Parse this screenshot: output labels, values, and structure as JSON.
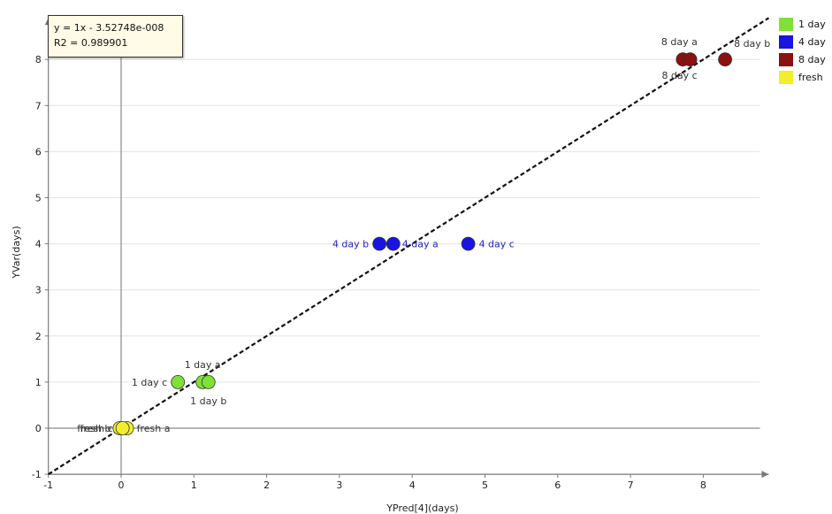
{
  "chart_data": {
    "type": "scatter",
    "xlabel": "YPred[4](days)",
    "ylabel": "YVar(days)",
    "xlim": [
      -1,
      8.9
    ],
    "ylim": [
      -1,
      8.9
    ],
    "xticks": [
      -1,
      0,
      1,
      2,
      3,
      4,
      5,
      6,
      7,
      8
    ],
    "yticks": [
      -1,
      0,
      1,
      2,
      3,
      4,
      5,
      6,
      7,
      8
    ],
    "regression": {
      "equation": "y = 1x - 3.52748e-008",
      "r2": "R2 = 0.989901",
      "slope": 1,
      "intercept": 0
    },
    "legend_position": "top-right",
    "series": [
      {
        "name": "1 day",
        "color": "#7fe036",
        "points": [
          {
            "label": "1 day a",
            "x": 1.12,
            "y": 1
          },
          {
            "label": "1 day b",
            "x": 1.2,
            "y": 1
          },
          {
            "label": "1 day c",
            "x": 0.78,
            "y": 1
          }
        ]
      },
      {
        "name": "4 day",
        "color": "#1a14e0",
        "points": [
          {
            "label": "4 day a",
            "x": 3.74,
            "y": 4
          },
          {
            "label": "4 day b",
            "x": 3.55,
            "y": 4
          },
          {
            "label": "4 day c",
            "x": 4.77,
            "y": 4
          }
        ]
      },
      {
        "name": "8 day",
        "color": "#8b1010",
        "points": [
          {
            "label": "8 day a",
            "x": 7.72,
            "y": 8
          },
          {
            "label": "8 day b",
            "x": 8.3,
            "y": 8
          },
          {
            "label": "8 day c",
            "x": 7.82,
            "y": 8
          }
        ]
      },
      {
        "name": "fresh",
        "color": "#f2ee2e",
        "points": [
          {
            "label": "fresh a",
            "x": 0.08,
            "y": 0
          },
          {
            "label": "fresh b",
            "x": -0.02,
            "y": 0
          },
          {
            "label": "fresh c",
            "x": 0.02,
            "y": 0
          }
        ]
      }
    ]
  }
}
